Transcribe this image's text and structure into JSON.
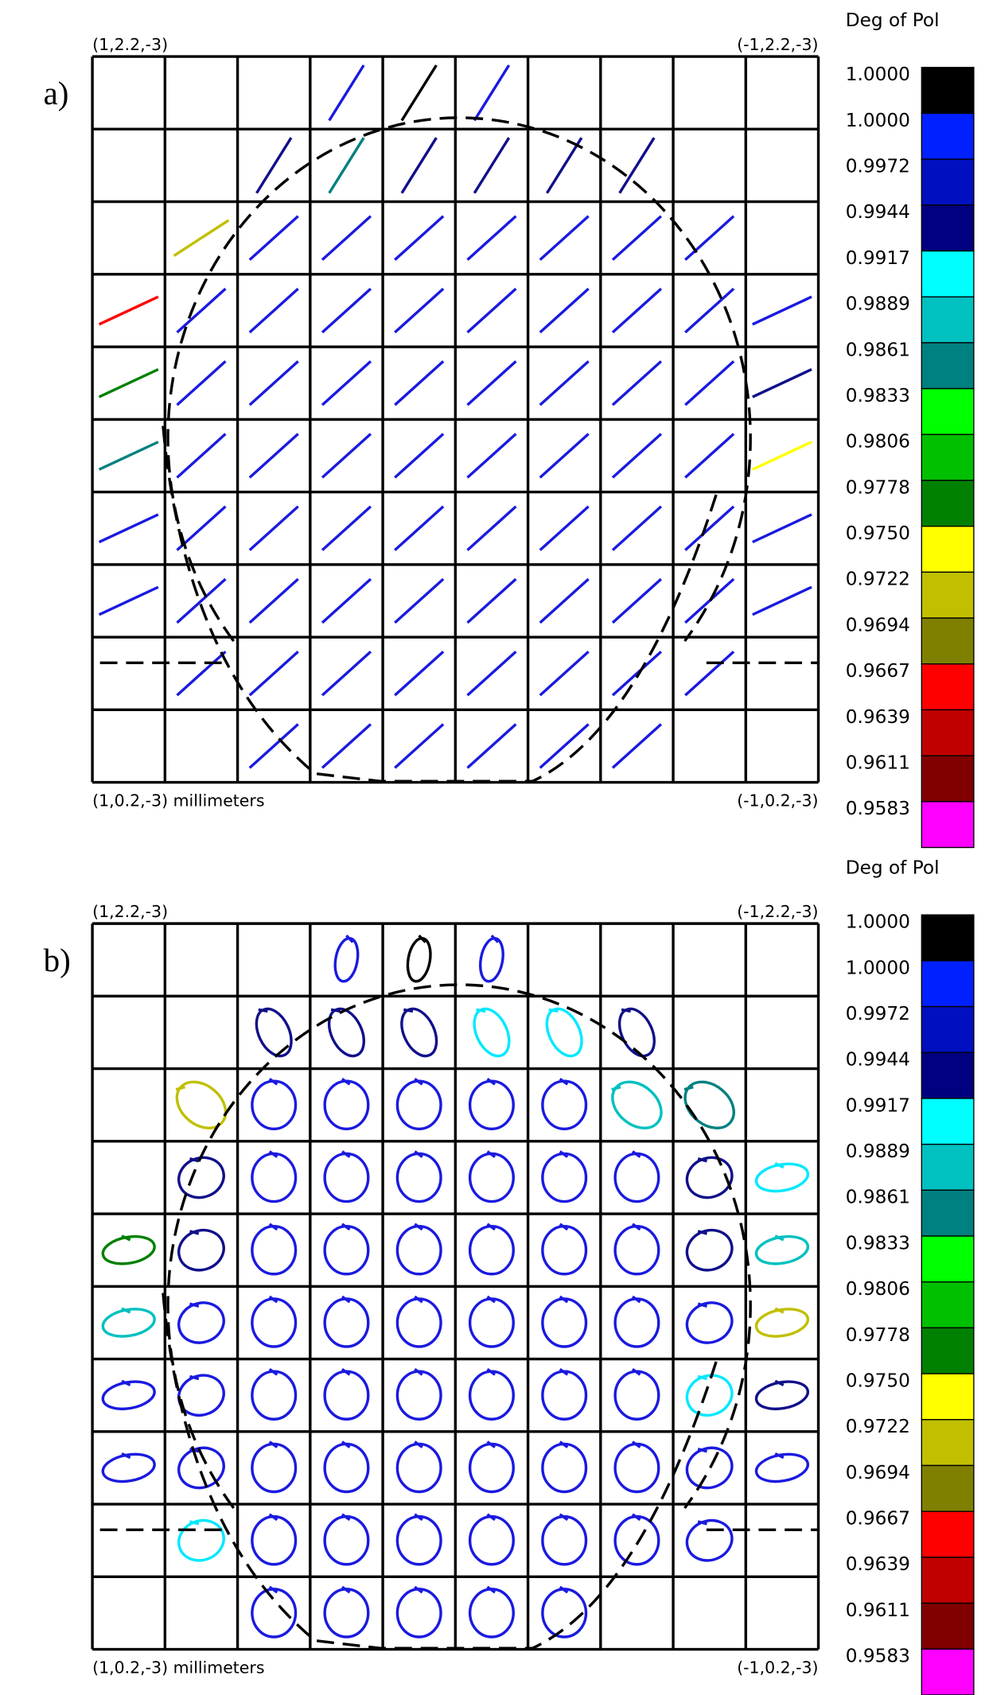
{
  "panels": [
    {
      "label": "a)",
      "marker": "line",
      "corners": {
        "top_left": "(1,2.2,-3)",
        "top_right": "(-1,2.2,-3)",
        "bottom_left": "(1,0.2,-3) millimeters",
        "bottom_right": "(-1,0.2,-3)"
      },
      "cells": [
        [
          null,
          null,
          null,
          "#1a1ae0",
          "#000000",
          "#1a1ae0",
          null,
          null,
          null,
          null
        ],
        [
          null,
          null,
          "#10108a",
          "#008080",
          "#10108a",
          "#10108a",
          "#10108a",
          "#10108a",
          null,
          null
        ],
        [
          null,
          "#c0c000",
          "#1a1ae0",
          "#1a1ae0",
          "#1a1ae0",
          "#1a1ae0",
          "#1a1ae0",
          "#1a1ae0",
          "#1a1ae0",
          null
        ],
        [
          "#ff0000",
          "#1a1ae0",
          "#1a1ae0",
          "#1a1ae0",
          "#1a1ae0",
          "#1a1ae0",
          "#1a1ae0",
          "#1a1ae0",
          "#1a1ae0",
          "#1a1ae0"
        ],
        [
          "#008000",
          "#1a1ae0",
          "#1a1ae0",
          "#1a1ae0",
          "#1a1ae0",
          "#1a1ae0",
          "#1a1ae0",
          "#1a1ae0",
          "#1a1ae0",
          "#10108a"
        ],
        [
          "#008080",
          "#1a1ae0",
          "#1a1ae0",
          "#1a1ae0",
          "#1a1ae0",
          "#1a1ae0",
          "#1a1ae0",
          "#1a1ae0",
          "#1a1ae0",
          "#ffff00"
        ],
        [
          "#1a1ae0",
          "#1a1ae0",
          "#1a1ae0",
          "#1a1ae0",
          "#1a1ae0",
          "#1a1ae0",
          "#1a1ae0",
          "#1a1ae0",
          "#1a1ae0",
          "#1a1ae0"
        ],
        [
          "#1a1ae0",
          "#1a1ae0",
          "#1a1ae0",
          "#1a1ae0",
          "#1a1ae0",
          "#1a1ae0",
          "#1a1ae0",
          "#1a1ae0",
          "#1a1ae0",
          "#1a1ae0"
        ],
        [
          null,
          "#1a1ae0",
          "#1a1ae0",
          "#1a1ae0",
          "#1a1ae0",
          "#1a1ae0",
          "#1a1ae0",
          "#1a1ae0",
          "#1a1ae0",
          null
        ],
        [
          null,
          null,
          "#1a1ae0",
          "#1a1ae0",
          "#1a1ae0",
          "#1a1ae0",
          "#1a1ae0",
          "#1a1ae0",
          null,
          null
        ]
      ],
      "colorbar": {
        "title": "Deg of Pol",
        "labels": [
          "1.0000",
          "1.0000",
          "0.9972",
          "0.9944",
          "0.9917",
          "0.9889",
          "0.9861",
          "0.9833",
          "0.9806",
          "0.9778",
          "0.9750",
          "0.9722",
          "0.9694",
          "0.9667",
          "0.9639",
          "0.9611",
          "0.9583"
        ],
        "colors": [
          "#000000",
          "#0020ff",
          "#0010c0",
          "#000080",
          "#00ffff",
          "#00c0c0",
          "#008080",
          "#00ff00",
          "#00c000",
          "#008000",
          "#ffff00",
          "#c0c000",
          "#808000",
          "#ff0000",
          "#c00000",
          "#800000",
          "#ff00ff"
        ]
      }
    },
    {
      "label": "b)",
      "marker": "ellipse",
      "corners": {
        "top_left": "(1,2.2,-3)",
        "top_right": "(-1,2.2,-3)",
        "bottom_left": "(1,0.2,-3) millimeters",
        "bottom_right": "(-1,0.2,-3)"
      },
      "cells": [
        [
          null,
          null,
          null,
          "#1a1ae0",
          "#000000",
          "#1a1ae0",
          null,
          null,
          null,
          null
        ],
        [
          null,
          null,
          "#10108a",
          "#10108a",
          "#10108a",
          "#00e8ff",
          "#00e8ff",
          "#10108a",
          null,
          null
        ],
        [
          null,
          "#c0c000",
          "#1a1ae0",
          "#1a1ae0",
          "#1a1ae0",
          "#1a1ae0",
          "#1a1ae0",
          "#00c0c0",
          "#008080",
          null
        ],
        [
          null,
          "#10108a",
          "#1a1ae0",
          "#1a1ae0",
          "#1a1ae0",
          "#1a1ae0",
          "#1a1ae0",
          "#1a1ae0",
          "#10108a",
          "#00e8ff"
        ],
        [
          "#008000",
          "#10108a",
          "#1a1ae0",
          "#1a1ae0",
          "#1a1ae0",
          "#1a1ae0",
          "#1a1ae0",
          "#1a1ae0",
          "#10108a",
          "#00c0c0"
        ],
        [
          "#00c0c0",
          "#1a1ae0",
          "#1a1ae0",
          "#1a1ae0",
          "#1a1ae0",
          "#1a1ae0",
          "#1a1ae0",
          "#1a1ae0",
          "#1a1ae0",
          "#c0c000"
        ],
        [
          "#1a1ae0",
          "#1a1ae0",
          "#1a1ae0",
          "#1a1ae0",
          "#1a1ae0",
          "#1a1ae0",
          "#1a1ae0",
          "#1a1ae0",
          "#00e8ff",
          "#10108a"
        ],
        [
          "#1a1ae0",
          "#1a1ae0",
          "#1a1ae0",
          "#1a1ae0",
          "#1a1ae0",
          "#1a1ae0",
          "#1a1ae0",
          "#1a1ae0",
          "#1a1ae0",
          "#1a1ae0"
        ],
        [
          null,
          "#00e8ff",
          "#1a1ae0",
          "#1a1ae0",
          "#1a1ae0",
          "#1a1ae0",
          "#1a1ae0",
          "#1a1ae0",
          "#1a1ae0",
          null
        ],
        [
          null,
          null,
          "#1a1ae0",
          "#1a1ae0",
          "#1a1ae0",
          "#1a1ae0",
          "#1a1ae0",
          null,
          null,
          null
        ]
      ],
      "colorbar": {
        "title": "Deg of Pol",
        "labels": [
          "1.0000",
          "1.0000",
          "0.9972",
          "0.9944",
          "0.9917",
          "0.9889",
          "0.9861",
          "0.9833",
          "0.9806",
          "0.9778",
          "0.9750",
          "0.9722",
          "0.9694",
          "0.9667",
          "0.9639",
          "0.9611",
          "0.9583"
        ],
        "colors": [
          "#000000",
          "#0020ff",
          "#0010c0",
          "#000080",
          "#00ffff",
          "#00c0c0",
          "#008080",
          "#00ff00",
          "#00c000",
          "#008000",
          "#ffff00",
          "#c0c000",
          "#808000",
          "#ff0000",
          "#c00000",
          "#800000",
          "#ff00ff"
        ]
      }
    }
  ]
}
